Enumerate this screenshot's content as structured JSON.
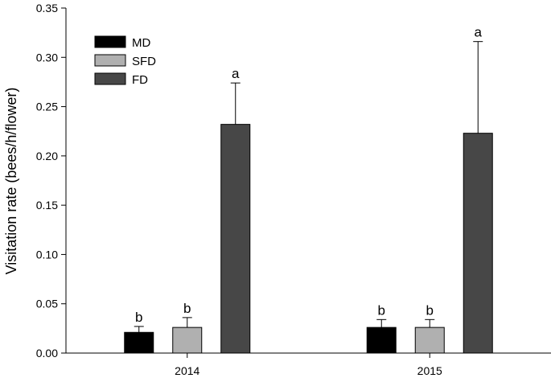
{
  "chart_data": {
    "type": "bar",
    "title": "",
    "xlabel": "",
    "ylabel": "Visitation rate (bees/h/flower)",
    "ylim": [
      0,
      0.35
    ],
    "yticks": [
      "0.00",
      "0.05",
      "0.10",
      "0.15",
      "0.20",
      "0.25",
      "0.30",
      "0.35"
    ],
    "categories": [
      "2014",
      "2015"
    ],
    "legend_position": "top-left",
    "grid": false,
    "series": [
      {
        "name": "MD",
        "color": "#000000",
        "values": [
          0.021,
          0.026
        ],
        "errors": [
          0.006,
          0.008
        ],
        "labels": [
          "b",
          "b"
        ]
      },
      {
        "name": "SFD",
        "color": "#b0b0b0",
        "values": [
          0.026,
          0.026
        ],
        "errors": [
          0.01,
          0.008
        ],
        "labels": [
          "b",
          "b"
        ]
      },
      {
        "name": "FD",
        "color": "#474747",
        "values": [
          0.232,
          0.223
        ],
        "errors": [
          0.042,
          0.093
        ],
        "labels": [
          "a",
          "a"
        ]
      }
    ]
  }
}
